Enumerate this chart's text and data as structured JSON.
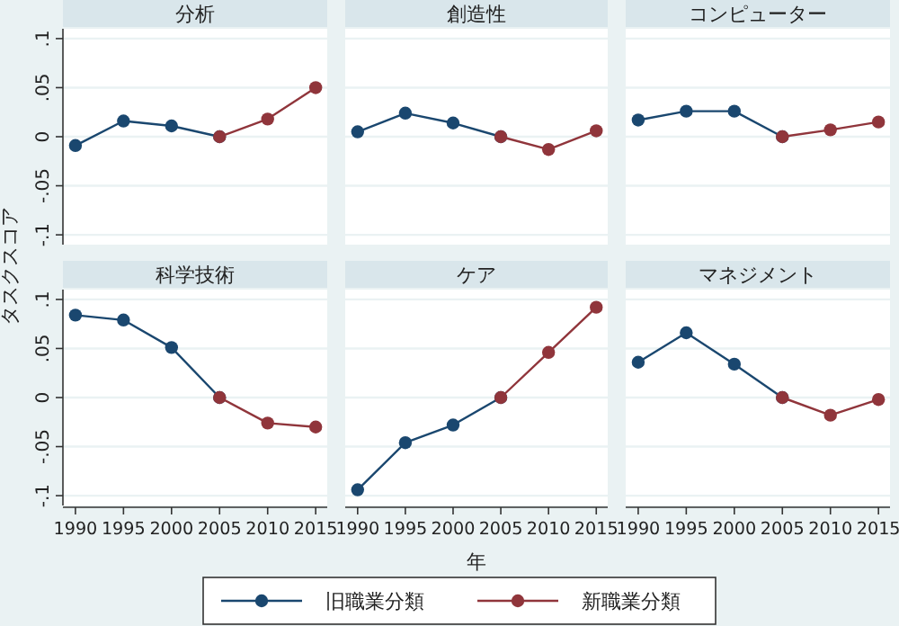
{
  "chart_data": [
    {
      "type": "line",
      "title": "分析",
      "ylabel": "タスクスコア",
      "xlim": [
        1988.7,
        2016.2
      ],
      "ylim": [
        -0.11,
        0.11
      ],
      "xticks": [
        1990,
        1995,
        2000,
        2005,
        2010,
        2015
      ],
      "yticks": [
        {
          "value": -0.1,
          "label": "-.1"
        },
        {
          "value": -0.05,
          "label": "-.05"
        },
        {
          "value": 0,
          "label": "0"
        },
        {
          "value": 0.05,
          "label": ".05"
        },
        {
          "value": 0.1,
          "label": ".1"
        }
      ],
      "grid": "y",
      "marker": "circle",
      "tick_labels": "y",
      "series": [
        {
          "color": "#1a476f",
          "x": [
            1990,
            1995,
            2000,
            2005
          ],
          "values": [
            -0.009,
            0.016,
            0.011,
            0
          ]
        },
        {
          "color": "#90353b",
          "x": [
            2005,
            2010,
            2015
          ],
          "values": [
            0,
            0.018,
            0.05
          ]
        }
      ]
    },
    {
      "type": "line",
      "title": "創造性",
      "xlim": [
        1988.7,
        2016.2
      ],
      "ylim": [
        -0.11,
        0.11
      ],
      "xticks": [
        1990,
        1995,
        2000,
        2005,
        2010,
        2015
      ],
      "yticks": [
        -0.1,
        -0.05,
        0,
        0.05,
        0.1
      ],
      "grid": "y",
      "marker": "circle",
      "tick_labels": false,
      "series": [
        {
          "color": "#1a476f",
          "x": [
            1990,
            1995,
            2000,
            2005
          ],
          "values": [
            0.005,
            0.024,
            0.014,
            0
          ]
        },
        {
          "color": "#90353b",
          "x": [
            2005,
            2010,
            2015
          ],
          "values": [
            0,
            -0.013,
            0.006
          ]
        }
      ]
    },
    {
      "type": "line",
      "title": "コンピューター",
      "xlim": [
        1988.7,
        2016.2
      ],
      "ylim": [
        -0.11,
        0.11
      ],
      "xticks": [
        1990,
        1995,
        2000,
        2005,
        2010,
        2015
      ],
      "yticks": [
        -0.1,
        -0.05,
        0,
        0.05,
        0.1
      ],
      "grid": "y",
      "marker": "circle",
      "tick_labels": false,
      "series": [
        {
          "color": "#1a476f",
          "x": [
            1990,
            1995,
            2000,
            2005
          ],
          "values": [
            0.017,
            0.026,
            0.026,
            0
          ]
        },
        {
          "color": "#90353b",
          "x": [
            2005,
            2010,
            2015
          ],
          "values": [
            0,
            0.007,
            0.015
          ]
        }
      ]
    },
    {
      "type": "line",
      "title": "科学技術",
      "xlim": [
        1988.7,
        2016.2
      ],
      "ylim": [
        -0.11,
        0.11
      ],
      "xticks": [
        1990,
        1995,
        2000,
        2005,
        2010,
        2015
      ],
      "yticks": [
        {
          "value": -0.1,
          "label": "-.1"
        },
        {
          "value": -0.05,
          "label": "-.05"
        },
        {
          "value": 0,
          "label": "0"
        },
        {
          "value": 0.05,
          "label": ".05"
        },
        {
          "value": 0.1,
          "label": ".1"
        }
      ],
      "grid": "y",
      "marker": "circle",
      "series": [
        {
          "color": "#1a476f",
          "x": [
            1990,
            1995,
            2000,
            2005
          ],
          "values": [
            0.084,
            0.079,
            0.051,
            0
          ]
        },
        {
          "color": "#90353b",
          "x": [
            2005,
            2010,
            2015
          ],
          "values": [
            0,
            -0.026,
            -0.03
          ]
        }
      ]
    },
    {
      "type": "line",
      "title": "ケア",
      "xlabel": "年",
      "legend": "bottom",
      "xlim": [
        1988.7,
        2016.2
      ],
      "ylim": [
        -0.11,
        0.11
      ],
      "xticks": [
        1990,
        1995,
        2000,
        2005,
        2010,
        2015
      ],
      "yticks": [
        -0.1,
        -0.05,
        0,
        0.05,
        0.1
      ],
      "grid": "y",
      "marker": "circle",
      "tick_labels": "x",
      "series": [
        {
          "name": "旧職業分類",
          "color": "#1a476f",
          "x": [
            1990,
            1995,
            2000,
            2005
          ],
          "values": [
            -0.094,
            -0.046,
            -0.028,
            0
          ]
        },
        {
          "name": "新職業分類",
          "color": "#90353b",
          "x": [
            2005,
            2010,
            2015
          ],
          "values": [
            0,
            0.046,
            0.092
          ]
        }
      ]
    },
    {
      "type": "line",
      "title": "マネジメント",
      "xlim": [
        1988.7,
        2016.2
      ],
      "ylim": [
        -0.11,
        0.11
      ],
      "xticks": [
        1990,
        1995,
        2000,
        2005,
        2010,
        2015
      ],
      "yticks": [
        -0.1,
        -0.05,
        0,
        0.05,
        0.1
      ],
      "grid": "y",
      "marker": "circle",
      "tick_labels": "x",
      "series": [
        {
          "color": "#1a476f",
          "x": [
            1990,
            1995,
            2000,
            2005
          ],
          "values": [
            0.036,
            0.066,
            0.034,
            0
          ]
        },
        {
          "color": "#90353b",
          "x": [
            2005,
            2010,
            2015
          ],
          "values": [
            0,
            -0.018,
            -0.002
          ]
        }
      ]
    }
  ]
}
